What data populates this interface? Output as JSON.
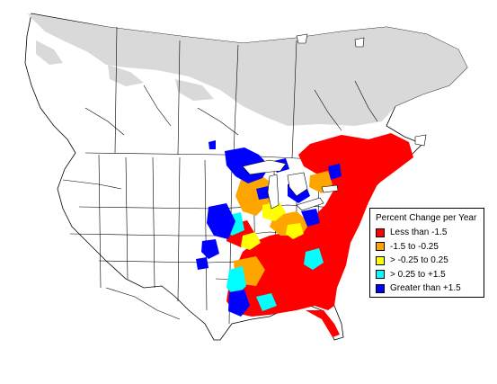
{
  "legend": {
    "title": "Percent Change per Year",
    "items": [
      {
        "label": "Less than -1.5",
        "color": "#ff0000"
      },
      {
        "label": "-1.5 to -0.25",
        "color": "#ffa500"
      },
      {
        "label": "> -0.25 to 0.25",
        "color": "#ffff00"
      },
      {
        "label": "> 0.25 to +1.5",
        "color": "#00ffff"
      },
      {
        "label": "Greater than +1.5",
        "color": "#0000ff"
      }
    ]
  },
  "colors": {
    "land": "#ffffff",
    "no_data": "#d9d9d9",
    "boundary": "#000000"
  }
}
